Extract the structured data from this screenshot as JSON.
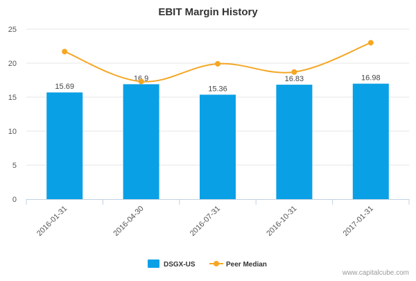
{
  "chart_data": {
    "type": "bar",
    "title": "EBIT Margin History",
    "categories": [
      "2016-01-31",
      "2016-04-30",
      "2016-07-31",
      "2016-10-31",
      "2017-01-31"
    ],
    "series": [
      {
        "name": "DSGX-US",
        "type": "bar",
        "color": "#0aa0e6",
        "values": [
          15.69,
          16.9,
          15.36,
          16.83,
          16.98
        ],
        "data_labels": [
          "15.69",
          "16.9",
          "15.36",
          "16.83",
          "16.98"
        ]
      },
      {
        "name": "Peer Median",
        "type": "line",
        "color": "#f5a623",
        "values": [
          21.7,
          17.3,
          19.9,
          18.7,
          23.0
        ]
      }
    ],
    "ylim": [
      0,
      25
    ],
    "yticks": [
      "0",
      "5",
      "10",
      "15",
      "20",
      "25"
    ],
    "xlabel": "",
    "ylabel": "",
    "grid": "horizontal",
    "legend_position": "bottom-center"
  },
  "credit": "www.capitalcube.com"
}
